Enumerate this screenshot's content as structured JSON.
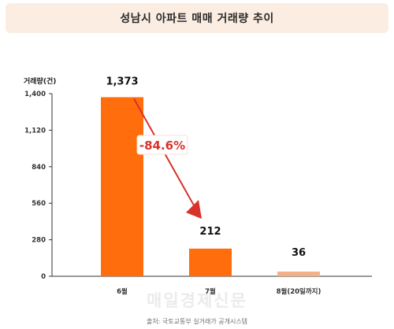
{
  "header": {
    "title": "성남시 아파트 매매 거래량 추이"
  },
  "footer": {
    "source": "출처: 국토교통부 실거래가 공개시스템"
  },
  "watermark": {
    "text": "매일경제신문"
  },
  "annotation": {
    "change_label": "-84.6%"
  },
  "colors": {
    "bar_main": "#ff6d0c",
    "bar_light": "#f6b088",
    "arrow": "#d8322b",
    "axis": "#333333"
  },
  "chart_data": {
    "type": "bar",
    "title": "성남시 아파트 매매 거래량 추이",
    "ylabel": "거래량(건)",
    "xlabel": "",
    "categories": [
      "6월",
      "7월",
      "8월(20일까지)"
    ],
    "values": [
      1373,
      212,
      36
    ],
    "value_labels": [
      "1,373",
      "212",
      "36"
    ],
    "ylim": [
      0,
      1400
    ],
    "yticks": [
      0,
      280,
      560,
      840,
      1120,
      1400
    ],
    "ytick_labels": [
      "0",
      "280",
      "560",
      "840",
      "1,120",
      "1,400"
    ],
    "grid": false,
    "legend": "none"
  }
}
